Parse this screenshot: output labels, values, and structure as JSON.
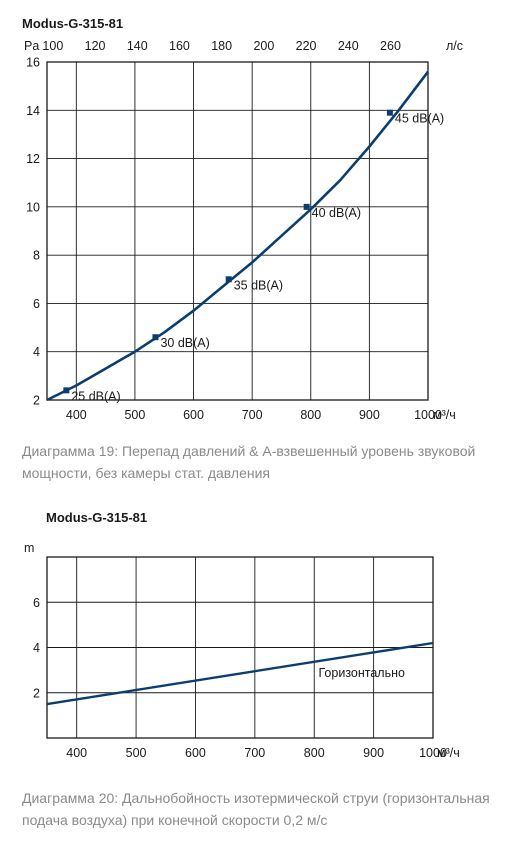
{
  "chart_data": [
    {
      "type": "line",
      "title": "Modus-G-315-81",
      "ylabel": "Pa",
      "xlabel": "м³/ч",
      "x2label": "л/с",
      "xlim": [
        350,
        1000
      ],
      "ylim": [
        2,
        16
      ],
      "xticks": [
        400,
        500,
        600,
        700,
        800,
        900,
        1000
      ],
      "yticks": [
        2,
        4,
        6,
        8,
        10,
        12,
        14,
        16
      ],
      "x2ticks": [
        100,
        120,
        140,
        160,
        180,
        200,
        220,
        240,
        260
      ],
      "grid": true,
      "series": [
        {
          "x": [
            350,
            400,
            450,
            500,
            550,
            600,
            650,
            700,
            750,
            800,
            850,
            900,
            950,
            1000
          ],
          "y": [
            2.0,
            2.6,
            3.3,
            4.0,
            4.8,
            5.7,
            6.7,
            7.7,
            8.8,
            9.9,
            11.1,
            12.5,
            14.0,
            15.6
          ]
        }
      ],
      "markers": [
        {
          "x": 383,
          "y": 2.4,
          "label": "25 dB(A)"
        },
        {
          "x": 535,
          "y": 4.6,
          "label": "30 dB(A)"
        },
        {
          "x": 660,
          "y": 7.0,
          "label": "35 dB(A)"
        },
        {
          "x": 793,
          "y": 10.0,
          "label": "40 dB(A)"
        },
        {
          "x": 935,
          "y": 13.9,
          "label": "45 dB(A)"
        }
      ],
      "caption": "Диаграмма 19: Перепад давлений & A-взвешенный уровень звуковой мощности, без камеры стат. давления"
    },
    {
      "type": "line",
      "title": "Modus-G-315-81",
      "ylabel": "m",
      "xlabel": "м³/ч",
      "xlim": [
        350,
        1000
      ],
      "ylim": [
        0,
        8
      ],
      "xticks": [
        400,
        500,
        600,
        700,
        800,
        900,
        1000
      ],
      "yticks": [
        2,
        4,
        6
      ],
      "grid": true,
      "series": [
        {
          "name": "Горизонтально",
          "x": [
            350,
            1000
          ],
          "y": [
            1.5,
            4.2
          ]
        }
      ],
      "caption": "Диаграмма 20: Дальнобойность изотермической струи (горизонтальная подача воздуха) при конечной скорости 0,2 м/с"
    }
  ],
  "colors": {
    "line": "#0b3d6e",
    "grid": "#1a1a1a",
    "caption": "#8a8a8a"
  }
}
